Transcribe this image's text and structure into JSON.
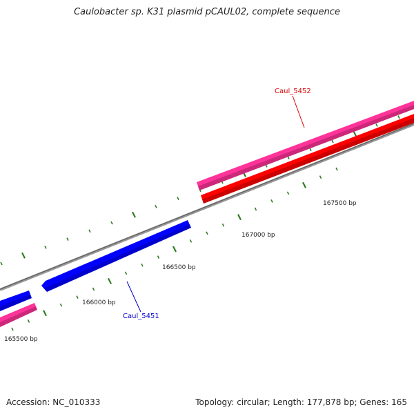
{
  "title": "Caulobacter sp. K31 plasmid pCAUL02, complete sequence",
  "footer": {
    "accession_label": "Accession:",
    "accession": "NC_010333",
    "topology_label": "Topology:",
    "topology": "circular",
    "length_label": "Length:",
    "length": "177,878 bp",
    "genes_label": "Genes:",
    "genes": "165"
  },
  "genes": [
    {
      "name": "Caul_5452",
      "strand": "forward",
      "color": "#dd0000"
    },
    {
      "name": "Caul_5451",
      "strand": "reverse",
      "color": "#0000cc"
    }
  ],
  "ruler_labels": [
    "165500 bp",
    "166000 bp",
    "166500 bp",
    "167000 bp",
    "167500 bp"
  ],
  "colors": {
    "forward_gene": "#ff0000",
    "reverse_gene": "#0000ff",
    "cds_outer": "#ff3399",
    "backbone": "#777777",
    "ticks": "#2e7d1e"
  }
}
